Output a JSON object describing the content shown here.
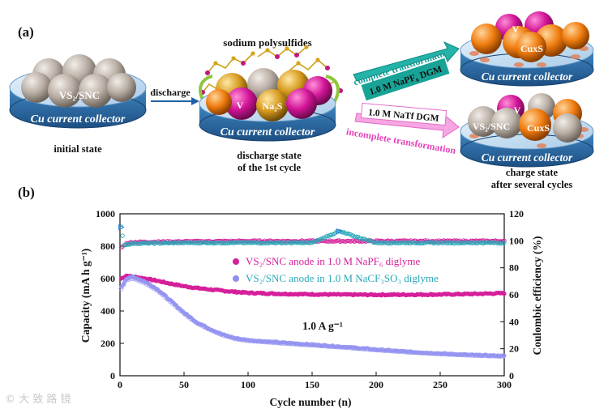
{
  "figure": {
    "panel_a": "(a)",
    "panel_b": "(b)"
  },
  "schematic": {
    "collector_label": "Cu current collector",
    "initial": {
      "ball_label": "VS₂/SNC",
      "caption": "initial state"
    },
    "discharge_arrow": "discharge",
    "polysulfide_label": "sodium polysulfides",
    "discharge_state": {
      "ball_v": "V",
      "ball_na2s": "Na₂S",
      "caption_line1": "discharge state",
      "caption_line2": "of the 1st cycle"
    },
    "top_path": {
      "arrow_text": "complete transformation",
      "box_text": "1.0 M NaPF₆ DGM",
      "ball_v": "V",
      "ball_cuxs": "CuxS"
    },
    "bottom_path": {
      "arrow_text": "incomplete transformation",
      "box_text": "1.0 M NaTf DGM",
      "ball_v": "V",
      "ball_vs2": "VS₂/SNC",
      "ball_cuxs": "CuxS",
      "caption_line1": "charge state",
      "caption_line2": "after several cycles"
    },
    "colors": {
      "disc_side": "#2b6ea8",
      "disc_top": "#c6dff3",
      "grey_ball": "#bdb3aa",
      "magenta": "#d21497",
      "orange": "#f07d10",
      "teal_arrow": "#23b3a8",
      "pink_arrow": "#ef66cd"
    }
  },
  "chart_data": {
    "type": "scatter",
    "title": "",
    "xlabel": "Cycle number (n)",
    "ylabel_left": "Capacity (mA h g⁻¹)",
    "ylabel_right": "Coulombic efficiency (%)",
    "xlim": [
      0,
      300
    ],
    "ylim_left": [
      0,
      1000
    ],
    "ylim_right": [
      0,
      120
    ],
    "x_ticks": [
      0,
      50,
      100,
      150,
      200,
      250,
      300
    ],
    "y_ticks_left": [
      0,
      200,
      400,
      600,
      800,
      1000
    ],
    "y_ticks_right": [
      0,
      20,
      40,
      60,
      80,
      100,
      120
    ],
    "annotation": "1.0 A g⁻¹",
    "legend_position": "center-right",
    "series": [
      {
        "name": "VS₂/SNC anode in 1.0 M NaPF₆ diglyme",
        "color": "#d61f9a",
        "axis": "left",
        "points": [
          [
            1,
            600
          ],
          [
            5,
            618
          ],
          [
            10,
            612
          ],
          [
            20,
            600
          ],
          [
            30,
            585
          ],
          [
            40,
            568
          ],
          [
            50,
            553
          ],
          [
            60,
            542
          ],
          [
            70,
            533
          ],
          [
            80,
            525
          ],
          [
            90,
            518
          ],
          [
            100,
            512
          ],
          [
            125,
            506
          ],
          [
            150,
            503
          ],
          [
            175,
            501
          ],
          [
            200,
            500
          ],
          [
            225,
            501
          ],
          [
            250,
            502
          ],
          [
            275,
            505
          ],
          [
            300,
            510
          ]
        ]
      },
      {
        "name": "VS₂/SNC anode in 1.0 M NaCF₃SO₃ diglyme",
        "color": "#8f8ff0",
        "axis": "left",
        "points": [
          [
            1,
            545
          ],
          [
            5,
            600
          ],
          [
            10,
            612
          ],
          [
            20,
            580
          ],
          [
            30,
            530
          ],
          [
            40,
            460
          ],
          [
            50,
            390
          ],
          [
            60,
            330
          ],
          [
            70,
            290
          ],
          [
            80,
            255
          ],
          [
            90,
            232
          ],
          [
            100,
            220
          ],
          [
            125,
            205
          ],
          [
            150,
            192
          ],
          [
            175,
            178
          ],
          [
            200,
            162
          ],
          [
            225,
            148
          ],
          [
            250,
            137
          ],
          [
            275,
            128
          ],
          [
            300,
            122
          ]
        ]
      },
      {
        "name": "Coulombic efficiency (NaPF₆)",
        "color": "#d61f9a",
        "axis": "right",
        "points": [
          [
            1,
            95
          ],
          [
            5,
            98
          ],
          [
            10,
            99
          ],
          [
            50,
            99.5
          ],
          [
            100,
            99.8
          ],
          [
            150,
            99.8
          ],
          [
            200,
            99.8
          ],
          [
            250,
            99.8
          ],
          [
            300,
            99.8
          ]
        ]
      },
      {
        "name": "Coulombic efficiency (NaCF₃SO₃)",
        "color": "#2aa8b8",
        "axis": "right",
        "points": [
          [
            1,
            110
          ],
          [
            3,
            97
          ],
          [
            10,
            98
          ],
          [
            50,
            98.5
          ],
          [
            100,
            98.5
          ],
          [
            150,
            98.5
          ],
          [
            171,
            107
          ],
          [
            200,
            98.5
          ],
          [
            250,
            98.5
          ],
          [
            300,
            98.5
          ]
        ]
      }
    ]
  }
}
